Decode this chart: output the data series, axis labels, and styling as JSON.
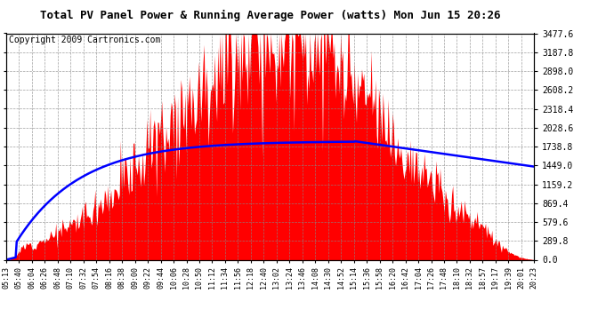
{
  "title": "Total PV Panel Power & Running Average Power (watts) Mon Jun 15 20:26",
  "copyright": "Copyright 2009 Cartronics.com",
  "bg_color": "#ffffff",
  "plot_bg_color": "#ffffff",
  "bar_color": "#ff0000",
  "line_color": "#0000ff",
  "yticks": [
    0.0,
    289.8,
    579.6,
    869.4,
    1159.2,
    1449.0,
    1738.8,
    2028.6,
    2318.4,
    2608.2,
    2898.0,
    3187.8,
    3477.6
  ],
  "xtick_labels": [
    "05:13",
    "05:40",
    "06:04",
    "06:26",
    "06:48",
    "07:10",
    "07:32",
    "07:54",
    "08:16",
    "08:38",
    "09:00",
    "09:22",
    "09:44",
    "10:06",
    "10:28",
    "10:50",
    "11:12",
    "11:34",
    "11:56",
    "12:18",
    "12:40",
    "13:02",
    "13:24",
    "13:46",
    "14:08",
    "14:30",
    "14:52",
    "15:14",
    "15:36",
    "15:58",
    "16:20",
    "16:42",
    "17:04",
    "17:26",
    "17:48",
    "18:10",
    "18:32",
    "18:57",
    "19:17",
    "19:39",
    "20:01",
    "20:23"
  ],
  "ymax": 3477.6,
  "ymin": 0.0,
  "title_fontsize": 9,
  "copyright_fontsize": 7,
  "ytick_fontsize": 7,
  "xtick_fontsize": 6
}
